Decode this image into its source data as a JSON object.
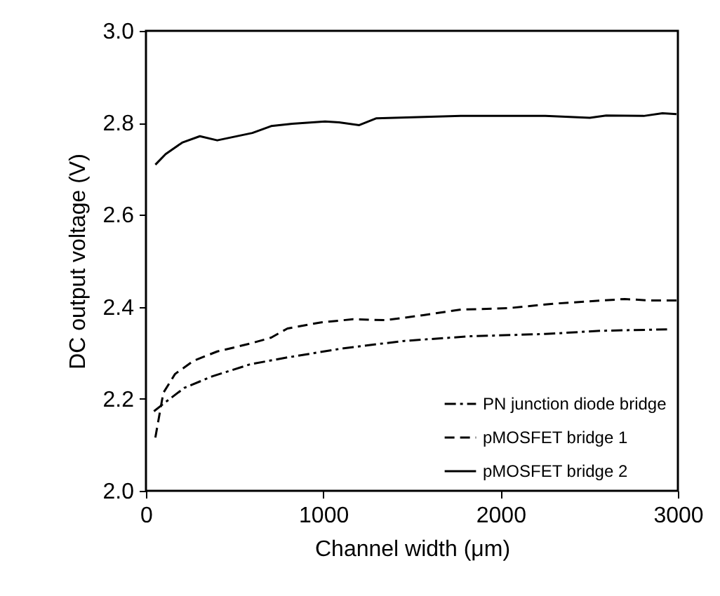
{
  "chart_data": {
    "type": "line",
    "xlabel": "Channel width (μm)",
    "ylabel": "DC output voltage (V)",
    "xlim": [
      0,
      3000
    ],
    "xticks": [
      0,
      1000,
      2000,
      3000
    ],
    "ylim": [
      2.0,
      3.0
    ],
    "yticks": [
      {
        "value": 2.0,
        "label": "2.0"
      },
      {
        "value": 2.2,
        "label": "2.2"
      },
      {
        "value": 2.4,
        "label": "2.4"
      },
      {
        "value": 2.6,
        "label": "2.6"
      },
      {
        "value": 2.8,
        "label": "2.8"
      },
      {
        "value": 3.0,
        "label": "3.0"
      }
    ],
    "grid": false,
    "legend": "bottom right",
    "marker": "none",
    "series": [
      {
        "name": "PN junction diode bridge",
        "color": "#000000",
        "line_style": "dashdot",
        "x": [
          45,
          111,
          217,
          375,
          587,
          798,
          1115,
          1459,
          1829,
          2252,
          2569,
          2939
        ],
        "values": [
          2.173,
          2.193,
          2.224,
          2.249,
          2.275,
          2.29,
          2.31,
          2.326,
          2.336,
          2.341,
          2.348,
          2.351
        ]
      },
      {
        "name": "pMOSFET bridge 1",
        "color": "#000000",
        "line_style": "dashed",
        "x": [
          53,
          98,
          164,
          270,
          402,
          587,
          706,
          798,
          983,
          1168,
          1353,
          1564,
          1776,
          2040,
          2305,
          2701,
          2834,
          2992
        ],
        "values": [
          2.116,
          2.213,
          2.254,
          2.283,
          2.303,
          2.32,
          2.333,
          2.353,
          2.366,
          2.373,
          2.371,
          2.382,
          2.394,
          2.397,
          2.407,
          2.417,
          2.414,
          2.414
        ]
      },
      {
        "name": "pMOSFET bridge 2",
        "color": "#000000",
        "line_style": "solid",
        "x": [
          53,
          111,
          204,
          304,
          402,
          600,
          706,
          825,
          1010,
          1089,
          1203,
          1300,
          1776,
          2252,
          2503,
          2596,
          2807,
          2913,
          2992
        ],
        "values": [
          2.709,
          2.732,
          2.757,
          2.771,
          2.762,
          2.778,
          2.793,
          2.798,
          2.803,
          2.801,
          2.795,
          2.81,
          2.815,
          2.815,
          2.811,
          2.816,
          2.815,
          2.821,
          2.819
        ]
      }
    ]
  }
}
